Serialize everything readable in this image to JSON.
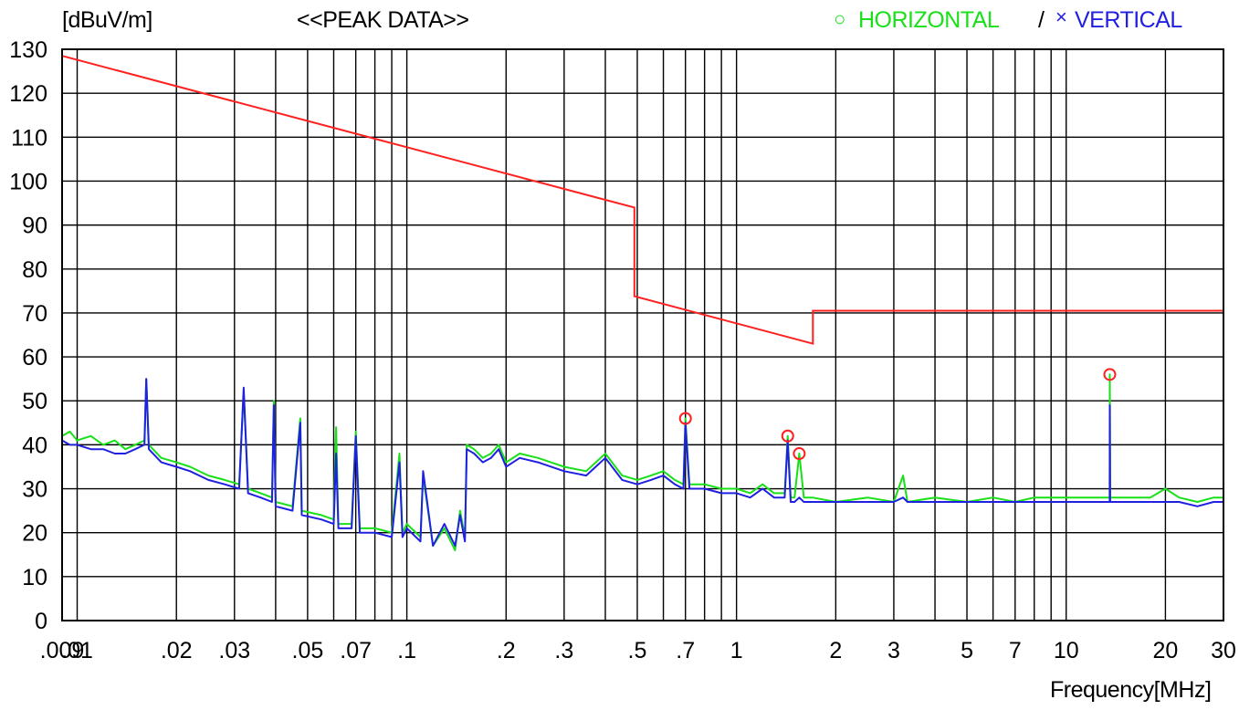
{
  "header": {
    "y_unit": "[dBuV/m]",
    "title": "<<PEAK DATA>>",
    "legend_h_symbol": "○",
    "legend_h": "HORIZONTAL",
    "legend_sep": "/",
    "legend_v_symbol": "×",
    "legend_v": "VERTICAL"
  },
  "chart_data": {
    "type": "line",
    "title": "<<PEAK DATA>>",
    "ylabel": "[dBuV/m]",
    "xlabel": "Frequency[MHz]",
    "x_scale": "log",
    "xlim": [
      0.009,
      30
    ],
    "ylim": [
      0,
      130
    ],
    "grid": true,
    "legend_position": "top-right",
    "y_ticks": [
      0,
      10,
      20,
      30,
      40,
      50,
      60,
      70,
      80,
      90,
      100,
      110,
      120,
      130
    ],
    "x_ticks": [
      {
        "value": 0.009,
        "label": ".009"
      },
      {
        "value": 0.01,
        "label": ".01"
      },
      {
        "value": 0.02,
        "label": ".02"
      },
      {
        "value": 0.03,
        "label": ".03"
      },
      {
        "value": 0.05,
        "label": ".05"
      },
      {
        "value": 0.07,
        "label": ".07"
      },
      {
        "value": 0.1,
        "label": ".1"
      },
      {
        "value": 0.2,
        "label": ".2"
      },
      {
        "value": 0.3,
        "label": ".3"
      },
      {
        "value": 0.5,
        "label": ".5"
      },
      {
        "value": 0.7,
        "label": ".7"
      },
      {
        "value": 1,
        "label": "1"
      },
      {
        "value": 2,
        "label": "2"
      },
      {
        "value": 3,
        "label": "3"
      },
      {
        "value": 5,
        "label": "5"
      },
      {
        "value": 7,
        "label": "7"
      },
      {
        "value": 10,
        "label": "10"
      },
      {
        "value": 20,
        "label": "20"
      },
      {
        "value": 30,
        "label": "30"
      }
    ],
    "grid_x": [
      0.009,
      0.01,
      0.02,
      0.03,
      0.04,
      0.05,
      0.06,
      0.07,
      0.08,
      0.09,
      0.1,
      0.2,
      0.3,
      0.4,
      0.5,
      0.6,
      0.7,
      0.8,
      0.9,
      1,
      2,
      3,
      4,
      5,
      6,
      7,
      8,
      9,
      10,
      20,
      30
    ],
    "limit_line": {
      "color": "#ff2020",
      "points": [
        [
          0.009,
          128.5
        ],
        [
          0.49,
          94
        ],
        [
          0.49,
          73.8
        ],
        [
          1.705,
          63
        ],
        [
          1.705,
          70.5
        ],
        [
          30,
          70.5
        ]
      ]
    },
    "series": [
      {
        "name": "HORIZONTAL",
        "color": "#19e019",
        "points": [
          [
            0.009,
            42
          ],
          [
            0.0095,
            43
          ],
          [
            0.01,
            41
          ],
          [
            0.011,
            42
          ],
          [
            0.012,
            40
          ],
          [
            0.013,
            41
          ],
          [
            0.014,
            39
          ],
          [
            0.015,
            40
          ],
          [
            0.016,
            41
          ],
          [
            0.0162,
            55
          ],
          [
            0.0165,
            40
          ],
          [
            0.018,
            37
          ],
          [
            0.02,
            36
          ],
          [
            0.022,
            35
          ],
          [
            0.025,
            33
          ],
          [
            0.028,
            32
          ],
          [
            0.031,
            31
          ],
          [
            0.032,
            52
          ],
          [
            0.033,
            30
          ],
          [
            0.036,
            29
          ],
          [
            0.039,
            28
          ],
          [
            0.0395,
            50
          ],
          [
            0.04,
            27
          ],
          [
            0.045,
            26
          ],
          [
            0.0475,
            46
          ],
          [
            0.048,
            25
          ],
          [
            0.055,
            24
          ],
          [
            0.06,
            23
          ],
          [
            0.061,
            44
          ],
          [
            0.062,
            22
          ],
          [
            0.068,
            22
          ],
          [
            0.07,
            43
          ],
          [
            0.072,
            21
          ],
          [
            0.08,
            21
          ],
          [
            0.09,
            20
          ],
          [
            0.095,
            38
          ],
          [
            0.097,
            20
          ],
          [
            0.1,
            22
          ],
          [
            0.11,
            19
          ],
          [
            0.112,
            33
          ],
          [
            0.12,
            17
          ],
          [
            0.13,
            21
          ],
          [
            0.14,
            16
          ],
          [
            0.145,
            25
          ],
          [
            0.15,
            19
          ],
          [
            0.152,
            40
          ],
          [
            0.16,
            39
          ],
          [
            0.17,
            37
          ],
          [
            0.18,
            38
          ],
          [
            0.19,
            40
          ],
          [
            0.2,
            36
          ],
          [
            0.22,
            38
          ],
          [
            0.25,
            37
          ],
          [
            0.3,
            35
          ],
          [
            0.35,
            34
          ],
          [
            0.4,
            38
          ],
          [
            0.45,
            33
          ],
          [
            0.5,
            32
          ],
          [
            0.55,
            33
          ],
          [
            0.6,
            34
          ],
          [
            0.65,
            32
          ],
          [
            0.69,
            31
          ],
          [
            0.7,
            46
          ],
          [
            0.72,
            31
          ],
          [
            0.8,
            31
          ],
          [
            0.9,
            30
          ],
          [
            1,
            30
          ],
          [
            1.1,
            29
          ],
          [
            1.2,
            31
          ],
          [
            1.3,
            29
          ],
          [
            1.4,
            29
          ],
          [
            1.43,
            42
          ],
          [
            1.46,
            28
          ],
          [
            1.5,
            28
          ],
          [
            1.55,
            38
          ],
          [
            1.6,
            28
          ],
          [
            1.7,
            28
          ],
          [
            2,
            27
          ],
          [
            2.5,
            28
          ],
          [
            3,
            27
          ],
          [
            3.2,
            33
          ],
          [
            3.3,
            27
          ],
          [
            4,
            28
          ],
          [
            5,
            27
          ],
          [
            6,
            28
          ],
          [
            7,
            27
          ],
          [
            8,
            28
          ],
          [
            10,
            28
          ],
          [
            12,
            28
          ],
          [
            13.55,
            28
          ],
          [
            13.56,
            56
          ],
          [
            13.6,
            28
          ],
          [
            15,
            28
          ],
          [
            18,
            28
          ],
          [
            20,
            30
          ],
          [
            22,
            28
          ],
          [
            25,
            27
          ],
          [
            28,
            28
          ],
          [
            30,
            28
          ]
        ]
      },
      {
        "name": "VERTICAL",
        "color": "#2020e0",
        "points": [
          [
            0.009,
            41
          ],
          [
            0.0095,
            40
          ],
          [
            0.01,
            40
          ],
          [
            0.011,
            39
          ],
          [
            0.012,
            39
          ],
          [
            0.013,
            38
          ],
          [
            0.014,
            38
          ],
          [
            0.015,
            39
          ],
          [
            0.016,
            40
          ],
          [
            0.0162,
            55
          ],
          [
            0.0165,
            39
          ],
          [
            0.018,
            36
          ],
          [
            0.02,
            35
          ],
          [
            0.022,
            34
          ],
          [
            0.025,
            32
          ],
          [
            0.028,
            31
          ],
          [
            0.031,
            30
          ],
          [
            0.032,
            53
          ],
          [
            0.033,
            29
          ],
          [
            0.036,
            28
          ],
          [
            0.039,
            27
          ],
          [
            0.0395,
            49
          ],
          [
            0.04,
            26
          ],
          [
            0.045,
            25
          ],
          [
            0.0475,
            45
          ],
          [
            0.048,
            24
          ],
          [
            0.055,
            23
          ],
          [
            0.06,
            22
          ],
          [
            0.061,
            38
          ],
          [
            0.062,
            21
          ],
          [
            0.068,
            21
          ],
          [
            0.07,
            42
          ],
          [
            0.072,
            20
          ],
          [
            0.08,
            20
          ],
          [
            0.09,
            19
          ],
          [
            0.095,
            36
          ],
          [
            0.097,
            19
          ],
          [
            0.1,
            21
          ],
          [
            0.11,
            18
          ],
          [
            0.112,
            34
          ],
          [
            0.12,
            17
          ],
          [
            0.13,
            22
          ],
          [
            0.14,
            17
          ],
          [
            0.145,
            24
          ],
          [
            0.15,
            18
          ],
          [
            0.152,
            39
          ],
          [
            0.16,
            38
          ],
          [
            0.17,
            36
          ],
          [
            0.18,
            37
          ],
          [
            0.19,
            39
          ],
          [
            0.2,
            35
          ],
          [
            0.22,
            37
          ],
          [
            0.25,
            36
          ],
          [
            0.3,
            34
          ],
          [
            0.35,
            33
          ],
          [
            0.4,
            37
          ],
          [
            0.45,
            32
          ],
          [
            0.5,
            31
          ],
          [
            0.55,
            32
          ],
          [
            0.6,
            33
          ],
          [
            0.65,
            31
          ],
          [
            0.69,
            30
          ],
          [
            0.7,
            45
          ],
          [
            0.72,
            30
          ],
          [
            0.8,
            30
          ],
          [
            0.9,
            29
          ],
          [
            1,
            29
          ],
          [
            1.1,
            28
          ],
          [
            1.2,
            30
          ],
          [
            1.3,
            28
          ],
          [
            1.4,
            28
          ],
          [
            1.43,
            41
          ],
          [
            1.46,
            27
          ],
          [
            1.5,
            27
          ],
          [
            1.55,
            28
          ],
          [
            1.6,
            27
          ],
          [
            1.7,
            27
          ],
          [
            2,
            27
          ],
          [
            2.5,
            27
          ],
          [
            3,
            27
          ],
          [
            3.2,
            28
          ],
          [
            3.3,
            27
          ],
          [
            4,
            27
          ],
          [
            5,
            27
          ],
          [
            6,
            27
          ],
          [
            7,
            27
          ],
          [
            8,
            27
          ],
          [
            10,
            27
          ],
          [
            12,
            27
          ],
          [
            13.55,
            27
          ],
          [
            13.56,
            49
          ],
          [
            13.6,
            27
          ],
          [
            15,
            27
          ],
          [
            18,
            27
          ],
          [
            20,
            27
          ],
          [
            22,
            27
          ],
          [
            25,
            26
          ],
          [
            28,
            27
          ],
          [
            30,
            27
          ]
        ]
      }
    ],
    "markers": {
      "color": "#ff2020",
      "points": [
        [
          0.7,
          46
        ],
        [
          1.43,
          42
        ],
        [
          1.55,
          38
        ],
        [
          13.56,
          56
        ]
      ]
    }
  }
}
